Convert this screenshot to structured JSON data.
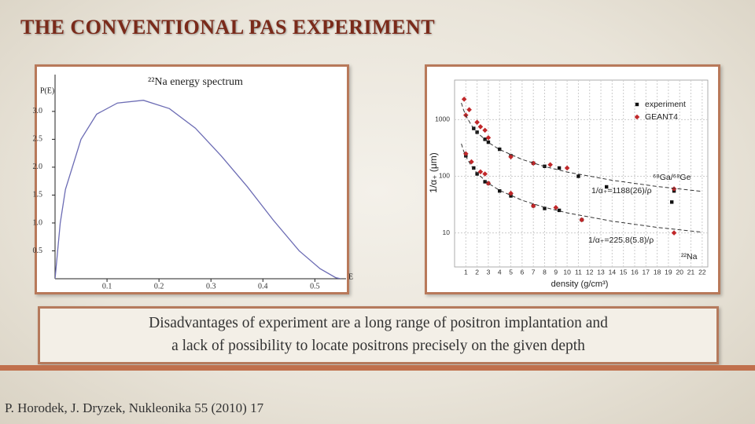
{
  "title": "THE CONVENTIONAL PAS EXPERIMENT",
  "caption": {
    "lines": [
      "Disadvantages of experiment are a long range of positron implantation and",
      "a lack of possibility to locate positrons precisely on the given depth"
    ]
  },
  "citation": "P. Horodek, J. Dryzek, Nukleonika 55 (2010) 17",
  "chart_data": [
    {
      "type": "line",
      "title": "²²Na energy spectrum",
      "ylabel": "P(E)",
      "xlabel": "E",
      "color": "#6c6cb4",
      "x": [
        0,
        0.01,
        0.02,
        0.05,
        0.08,
        0.12,
        0.17,
        0.22,
        0.27,
        0.32,
        0.37,
        0.42,
        0.47,
        0.51,
        0.54,
        0.55
      ],
      "values": [
        0,
        1.0,
        1.6,
        2.5,
        2.95,
        3.15,
        3.2,
        3.05,
        2.7,
        2.2,
        1.65,
        1.05,
        0.5,
        0.18,
        0.02,
        0
      ],
      "xlim": [
        0,
        0.56
      ],
      "ylim": [
        0,
        3.66
      ],
      "xticks": [
        0.1,
        0.2,
        0.3,
        0.4,
        0.5
      ],
      "yticks": [
        0.5,
        {
          "value": 1,
          "label": "1.0"
        },
        1.5,
        {
          "value": 2,
          "label": "2.0"
        },
        2.5,
        {
          "value": 3,
          "label": "3.0"
        }
      ]
    },
    {
      "type": "scatter",
      "xlabel": "density (g/cm³)",
      "ylabel": "1/α₊ (μm)",
      "yscale": "log",
      "grid": true,
      "legend": "upper right",
      "xlim": [
        0,
        22.5
      ],
      "ylim": [
        2.5,
        5000
      ],
      "xticks": [
        1,
        2,
        3,
        4,
        5,
        6,
        7,
        8,
        9,
        10,
        11,
        12,
        13,
        14,
        15,
        16,
        17,
        18,
        19,
        20,
        21,
        22
      ],
      "yticks": [
        10,
        100,
        1000
      ],
      "annotations": [
        "⁶⁸Ga/⁶⁸Ge",
        "1/α₊=1188(26)/ρ",
        "1/α₊=225.8(5.8)/ρ",
        "²²Na"
      ],
      "series": [
        {
          "name": "experiment",
          "color": "#111111",
          "marker": "square",
          "x": [
            1.7,
            2,
            2.7,
            3,
            4,
            5,
            7,
            8,
            9.3,
            11,
            13.5,
            19.5,
            1,
            1.7,
            2,
            2.7,
            3,
            4,
            5,
            7,
            8,
            9.3,
            11.3,
            19.3
          ],
          "values": [
            700,
            600,
            450,
            400,
            300,
            230,
            170,
            150,
            140,
            100,
            65,
            55,
            230,
            140,
            110,
            80,
            75,
            55,
            45,
            30,
            27,
            25,
            17,
            35
          ]
        },
        {
          "name": "GEANT4",
          "color": "#c0282a",
          "marker": "diamond",
          "x": [
            0.85,
            1,
            1.3,
            2,
            2.3,
            2.7,
            3,
            5,
            7,
            8.5,
            10,
            19.5,
            1,
            1.5,
            2.3,
            2.7,
            3,
            5,
            7,
            9,
            11.3,
            19.5
          ],
          "values": [
            2300,
            1200,
            1500,
            900,
            750,
            650,
            480,
            220,
            170,
            160,
            140,
            60,
            250,
            180,
            120,
            110,
            75,
            50,
            30,
            28,
            17,
            10
          ]
        },
        {
          "color": "#333333",
          "line": true,
          "dash": true,
          "x": [
            0.6,
            0.8,
            1,
            1.5,
            2,
            3,
            4,
            6,
            8,
            10,
            14,
            18,
            22
          ],
          "values": [
            1980,
            1485,
            1188,
            792,
            594,
            396,
            297,
            198,
            148.5,
            118.8,
            84.9,
            66,
            54
          ]
        },
        {
          "color": "#333333",
          "line": true,
          "dash": true,
          "x": [
            0.6,
            0.8,
            1,
            1.5,
            2,
            3,
            4,
            6,
            8,
            10,
            14,
            18,
            22
          ],
          "values": [
            376.3,
            282.3,
            225.8,
            150.5,
            112.9,
            75.3,
            56.5,
            37.6,
            28.2,
            22.6,
            16.1,
            12.5,
            10.3
          ]
        }
      ]
    }
  ]
}
